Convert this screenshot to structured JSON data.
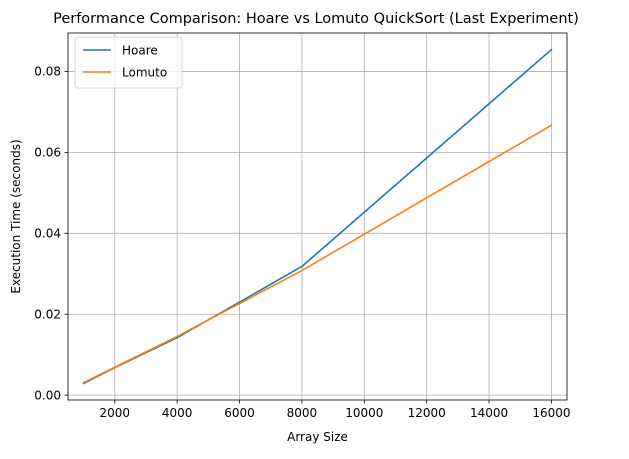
{
  "chart_data": {
    "type": "line",
    "title": "Performance Comparison: Hoare vs Lomuto QuickSort (Last Experiment)",
    "xlabel": "Array Size",
    "ylabel": "Execution Time (seconds)",
    "x": [
      1000,
      2000,
      4000,
      8000,
      16000
    ],
    "xlim": [
      500,
      16500
    ],
    "ylim": [
      -0.0012,
      0.0895
    ],
    "xticks": [
      2000,
      4000,
      6000,
      8000,
      10000,
      12000,
      14000,
      16000
    ],
    "xtick_labels": [
      "2000",
      "4000",
      "6000",
      "8000",
      "10000",
      "12000",
      "14000",
      "16000"
    ],
    "yticks": [
      0.0,
      0.02,
      0.04,
      0.06,
      0.08
    ],
    "ytick_labels": [
      "0.00",
      "0.02",
      "0.04",
      "0.06",
      "0.08"
    ],
    "grid": true,
    "legend_position": "upper-left",
    "series": [
      {
        "name": "Hoare",
        "color": "#1f77b4",
        "values": [
          0.0029,
          0.0068,
          0.0142,
          0.0318,
          0.0854
        ]
      },
      {
        "name": "Lomuto",
        "color": "#ff7f0e",
        "values": [
          0.0031,
          0.0069,
          0.0145,
          0.0308,
          0.0667
        ]
      }
    ]
  }
}
